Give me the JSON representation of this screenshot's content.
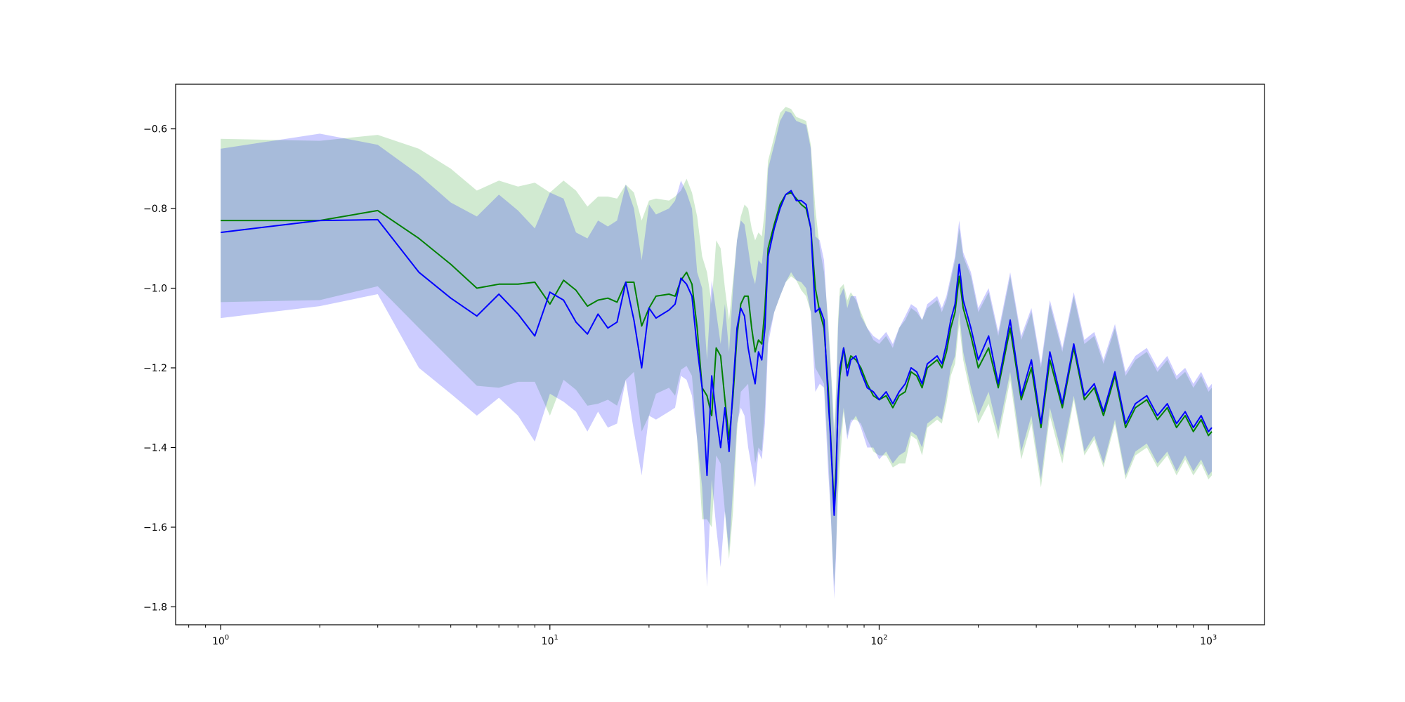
{
  "chart_data": {
    "type": "line",
    "title": "",
    "xlabel": "",
    "ylabel": "",
    "xscale": "log",
    "xlim": [
      0.73,
      1480
    ],
    "ylim": [
      -1.845,
      -0.488
    ],
    "grid": false,
    "legend": "none",
    "xticks": [
      {
        "value": 1,
        "base": "10",
        "exp": "0"
      },
      {
        "value": 10,
        "base": "10",
        "exp": "1"
      },
      {
        "value": 100,
        "base": "10",
        "exp": "2"
      },
      {
        "value": 1000,
        "base": "10",
        "exp": "3"
      }
    ],
    "yticks": [
      {
        "value": -0.6,
        "label": "−0.6"
      },
      {
        "value": -0.8,
        "label": "−0.8"
      },
      {
        "value": -1.0,
        "label": "−1.0"
      },
      {
        "value": -1.2,
        "label": "−1.2"
      },
      {
        "value": -1.4,
        "label": "−1.4"
      },
      {
        "value": -1.6,
        "label": "−1.6"
      },
      {
        "value": -1.8,
        "label": "−1.8"
      }
    ],
    "series": [
      {
        "color": "#008000",
        "band_color": "#2ca02c",
        "band_opacity": 0.22,
        "x": [
          1,
          2,
          3,
          4,
          5,
          6,
          7,
          8,
          9,
          10,
          11,
          12,
          13,
          14,
          15,
          16,
          17,
          18,
          19,
          20,
          21,
          23,
          24,
          25,
          26,
          27,
          28,
          29,
          30,
          31,
          32,
          33,
          34,
          35,
          36,
          37,
          38,
          39,
          40,
          41,
          42,
          43,
          44,
          45,
          46,
          48,
          50,
          52,
          54,
          56,
          58,
          60,
          62,
          64,
          66,
          68,
          70,
          71,
          72,
          73,
          74,
          75,
          76,
          78,
          80,
          82,
          85,
          88,
          92,
          96,
          100,
          105,
          110,
          115,
          120,
          125,
          130,
          135,
          140,
          145,
          150,
          155,
          160,
          165,
          170,
          175,
          180,
          190,
          200,
          215,
          230,
          250,
          270,
          290,
          310,
          330,
          360,
          390,
          420,
          450,
          480,
          520,
          560,
          600,
          650,
          700,
          750,
          800,
          850,
          900,
          950,
          1000,
          1024
        ],
        "mean": [
          -0.83,
          -0.83,
          -0.805,
          -0.875,
          -0.94,
          -1.0,
          -0.99,
          -0.99,
          -0.985,
          -1.04,
          -0.98,
          -1.005,
          -1.045,
          -1.03,
          -1.025,
          -1.035,
          -0.985,
          -0.985,
          -1.095,
          -1.05,
          -1.02,
          -1.015,
          -1.02,
          -0.98,
          -0.96,
          -0.99,
          -1.1,
          -1.25,
          -1.27,
          -1.32,
          -1.15,
          -1.17,
          -1.28,
          -1.38,
          -1.27,
          -1.12,
          -1.04,
          -1.02,
          -1.02,
          -1.1,
          -1.16,
          -1.13,
          -1.14,
          -1.05,
          -0.9,
          -0.84,
          -0.79,
          -0.765,
          -0.76,
          -0.775,
          -0.79,
          -0.8,
          -0.85,
          -1.0,
          -1.06,
          -1.1,
          -1.25,
          -1.35,
          -1.45,
          -1.55,
          -1.45,
          -1.3,
          -1.22,
          -1.15,
          -1.2,
          -1.17,
          -1.18,
          -1.2,
          -1.24,
          -1.27,
          -1.28,
          -1.27,
          -1.3,
          -1.27,
          -1.26,
          -1.21,
          -1.22,
          -1.25,
          -1.2,
          -1.19,
          -1.18,
          -1.2,
          -1.16,
          -1.1,
          -1.06,
          -0.97,
          -1.05,
          -1.12,
          -1.2,
          -1.15,
          -1.25,
          -1.1,
          -1.28,
          -1.2,
          -1.35,
          -1.18,
          -1.3,
          -1.15,
          -1.28,
          -1.25,
          -1.32,
          -1.22,
          -1.35,
          -1.3,
          -1.28,
          -1.33,
          -1.3,
          -1.35,
          -1.32,
          -1.36,
          -1.33,
          -1.37,
          -1.36
        ],
        "upper": [
          -0.625,
          -0.63,
          -0.615,
          -0.65,
          -0.7,
          -0.755,
          -0.73,
          -0.745,
          -0.735,
          -0.76,
          -0.73,
          -0.755,
          -0.795,
          -0.77,
          -0.77,
          -0.775,
          -0.74,
          -0.76,
          -0.83,
          -0.78,
          -0.775,
          -0.78,
          -0.77,
          -0.755,
          -0.725,
          -0.76,
          -0.82,
          -0.92,
          -0.96,
          -1.04,
          -0.88,
          -0.9,
          -1.0,
          -1.08,
          -0.98,
          -0.88,
          -0.82,
          -0.79,
          -0.8,
          -0.85,
          -0.88,
          -0.86,
          -0.87,
          -0.8,
          -0.68,
          -0.62,
          -0.56,
          -0.545,
          -0.55,
          -0.57,
          -0.575,
          -0.58,
          -0.64,
          -0.8,
          -0.9,
          -0.96,
          -1.08,
          -1.17,
          -1.25,
          -1.35,
          -1.25,
          -1.08,
          -1.0,
          -0.99,
          -1.03,
          -1.01,
          -1.03,
          -1.06,
          -1.1,
          -1.13,
          -1.14,
          -1.12,
          -1.15,
          -1.1,
          -1.08,
          -1.05,
          -1.06,
          -1.08,
          -1.05,
          -1.04,
          -1.03,
          -1.06,
          -1.03,
          -0.98,
          -0.93,
          -0.85,
          -0.92,
          -0.97,
          -1.06,
          -1.01,
          -1.12,
          -0.97,
          -1.13,
          -1.06,
          -1.2,
          -1.04,
          -1.16,
          -1.02,
          -1.14,
          -1.12,
          -1.19,
          -1.1,
          -1.22,
          -1.18,
          -1.16,
          -1.21,
          -1.18,
          -1.23,
          -1.21,
          -1.25,
          -1.22,
          -1.26,
          -1.25
        ],
        "lower": [
          -1.035,
          -1.03,
          -0.995,
          -1.1,
          -1.18,
          -1.245,
          -1.25,
          -1.235,
          -1.235,
          -1.32,
          -1.23,
          -1.255,
          -1.295,
          -1.29,
          -1.28,
          -1.295,
          -1.23,
          -1.21,
          -1.36,
          -1.32,
          -1.265,
          -1.25,
          -1.27,
          -1.205,
          -1.195,
          -1.22,
          -1.38,
          -1.58,
          -1.58,
          -1.6,
          -1.42,
          -1.44,
          -1.56,
          -1.68,
          -1.56,
          -1.36,
          -1.26,
          -1.25,
          -1.24,
          -1.35,
          -1.44,
          -1.4,
          -1.41,
          -1.3,
          -1.12,
          -1.06,
          -1.02,
          -0.985,
          -0.97,
          -0.98,
          -1.005,
          -1.02,
          -1.06,
          -1.2,
          -1.22,
          -1.24,
          -1.42,
          -1.53,
          -1.65,
          -1.75,
          -1.65,
          -1.52,
          -1.44,
          -1.31,
          -1.37,
          -1.33,
          -1.33,
          -1.34,
          -1.38,
          -1.41,
          -1.42,
          -1.42,
          -1.45,
          -1.44,
          -1.44,
          -1.37,
          -1.38,
          -1.42,
          -1.35,
          -1.34,
          -1.33,
          -1.34,
          -1.29,
          -1.22,
          -1.19,
          -1.09,
          -1.18,
          -1.27,
          -1.34,
          -1.29,
          -1.38,
          -1.23,
          -1.43,
          -1.34,
          -1.5,
          -1.32,
          -1.44,
          -1.28,
          -1.42,
          -1.38,
          -1.45,
          -1.34,
          -1.48,
          -1.42,
          -1.4,
          -1.45,
          -1.42,
          -1.47,
          -1.43,
          -1.47,
          -1.44,
          -1.48,
          -1.47
        ]
      },
      {
        "color": "#0000ff",
        "band_color": "#0000ff",
        "band_opacity": 0.2,
        "x": [
          1,
          2,
          3,
          4,
          5,
          6,
          7,
          8,
          9,
          10,
          11,
          12,
          13,
          14,
          15,
          16,
          17,
          18,
          19,
          20,
          21,
          23,
          24,
          25,
          26,
          27,
          28,
          29,
          30,
          31,
          32,
          33,
          34,
          35,
          36,
          37,
          38,
          39,
          40,
          41,
          42,
          43,
          44,
          45,
          46,
          48,
          50,
          52,
          54,
          56,
          58,
          60,
          62,
          64,
          66,
          68,
          70,
          71,
          72,
          73,
          74,
          75,
          76,
          78,
          80,
          82,
          85,
          88,
          92,
          96,
          100,
          105,
          110,
          115,
          120,
          125,
          130,
          135,
          140,
          145,
          150,
          155,
          160,
          165,
          170,
          175,
          180,
          190,
          200,
          215,
          230,
          250,
          270,
          290,
          310,
          330,
          360,
          390,
          420,
          450,
          480,
          520,
          560,
          600,
          650,
          700,
          750,
          800,
          850,
          900,
          950,
          1000,
          1024
        ],
        "mean": [
          -0.86,
          -0.83,
          -0.828,
          -0.96,
          -1.025,
          -1.07,
          -1.015,
          -1.065,
          -1.12,
          -1.01,
          -1.03,
          -1.085,
          -1.115,
          -1.065,
          -1.1,
          -1.085,
          -0.985,
          -1.08,
          -1.2,
          -1.05,
          -1.075,
          -1.055,
          -1.04,
          -0.975,
          -0.99,
          -1.02,
          -1.15,
          -1.25,
          -1.47,
          -1.22,
          -1.32,
          -1.4,
          -1.3,
          -1.41,
          -1.25,
          -1.1,
          -1.05,
          -1.07,
          -1.15,
          -1.2,
          -1.24,
          -1.16,
          -1.18,
          -1.1,
          -0.92,
          -0.85,
          -0.8,
          -0.765,
          -0.755,
          -0.78,
          -0.78,
          -0.79,
          -0.85,
          -1.06,
          -1.05,
          -1.08,
          -1.28,
          -1.36,
          -1.46,
          -1.57,
          -1.48,
          -1.28,
          -1.2,
          -1.15,
          -1.22,
          -1.18,
          -1.17,
          -1.21,
          -1.25,
          -1.26,
          -1.28,
          -1.26,
          -1.29,
          -1.26,
          -1.24,
          -1.2,
          -1.21,
          -1.24,
          -1.19,
          -1.18,
          -1.17,
          -1.19,
          -1.14,
          -1.08,
          -1.04,
          -0.94,
          -1.03,
          -1.1,
          -1.18,
          -1.12,
          -1.24,
          -1.08,
          -1.27,
          -1.18,
          -1.34,
          -1.16,
          -1.29,
          -1.14,
          -1.27,
          -1.24,
          -1.31,
          -1.21,
          -1.34,
          -1.29,
          -1.27,
          -1.32,
          -1.29,
          -1.34,
          -1.31,
          -1.35,
          -1.32,
          -1.36,
          -1.35
        ],
        "upper": [
          -0.65,
          -0.612,
          -0.64,
          -0.715,
          -0.785,
          -0.82,
          -0.765,
          -0.805,
          -0.85,
          -0.76,
          -0.775,
          -0.86,
          -0.875,
          -0.83,
          -0.845,
          -0.83,
          -0.74,
          -0.8,
          -0.93,
          -0.79,
          -0.815,
          -0.8,
          -0.78,
          -0.73,
          -0.76,
          -0.8,
          -0.96,
          -1.0,
          -1.18,
          -0.98,
          -1.06,
          -1.14,
          -1.04,
          -1.16,
          -1.0,
          -0.88,
          -0.83,
          -0.84,
          -0.9,
          -0.96,
          -0.99,
          -0.93,
          -0.94,
          -0.86,
          -0.7,
          -0.64,
          -0.58,
          -0.555,
          -0.56,
          -0.58,
          -0.585,
          -0.59,
          -0.65,
          -0.87,
          -0.88,
          -0.93,
          -1.1,
          -1.18,
          -1.27,
          -1.38,
          -1.29,
          -1.1,
          -1.02,
          -1.0,
          -1.05,
          -1.02,
          -1.02,
          -1.07,
          -1.1,
          -1.12,
          -1.13,
          -1.11,
          -1.14,
          -1.1,
          -1.07,
          -1.04,
          -1.05,
          -1.08,
          -1.04,
          -1.03,
          -1.02,
          -1.05,
          -1.02,
          -0.97,
          -0.92,
          -0.83,
          -0.91,
          -0.96,
          -1.05,
          -1.0,
          -1.11,
          -0.96,
          -1.12,
          -1.05,
          -1.19,
          -1.03,
          -1.15,
          -1.01,
          -1.13,
          -1.11,
          -1.18,
          -1.09,
          -1.21,
          -1.17,
          -1.15,
          -1.2,
          -1.17,
          -1.22,
          -1.2,
          -1.24,
          -1.21,
          -1.25,
          -1.24
        ],
        "lower": [
          -1.075,
          -1.045,
          -1.015,
          -1.2,
          -1.265,
          -1.32,
          -1.275,
          -1.32,
          -1.385,
          -1.265,
          -1.285,
          -1.31,
          -1.36,
          -1.31,
          -1.35,
          -1.34,
          -1.23,
          -1.36,
          -1.47,
          -1.32,
          -1.33,
          -1.31,
          -1.3,
          -1.22,
          -1.23,
          -1.27,
          -1.38,
          -1.5,
          -1.75,
          -1.48,
          -1.6,
          -1.7,
          -1.56,
          -1.66,
          -1.5,
          -1.34,
          -1.3,
          -1.32,
          -1.4,
          -1.45,
          -1.5,
          -1.41,
          -1.43,
          -1.34,
          -1.14,
          -1.06,
          -1.02,
          -0.985,
          -0.96,
          -0.98,
          -0.985,
          -1.0,
          -1.06,
          -1.26,
          -1.24,
          -1.25,
          -1.46,
          -1.54,
          -1.65,
          -1.78,
          -1.67,
          -1.46,
          -1.38,
          -1.3,
          -1.38,
          -1.34,
          -1.32,
          -1.35,
          -1.4,
          -1.4,
          -1.43,
          -1.41,
          -1.44,
          -1.42,
          -1.41,
          -1.36,
          -1.37,
          -1.4,
          -1.34,
          -1.33,
          -1.32,
          -1.33,
          -1.27,
          -1.2,
          -1.17,
          -1.06,
          -1.16,
          -1.25,
          -1.32,
          -1.26,
          -1.36,
          -1.21,
          -1.41,
          -1.32,
          -1.48,
          -1.3,
          -1.42,
          -1.27,
          -1.41,
          -1.37,
          -1.44,
          -1.33,
          -1.47,
          -1.41,
          -1.39,
          -1.44,
          -1.41,
          -1.46,
          -1.42,
          -1.46,
          -1.43,
          -1.47,
          -1.46
        ]
      }
    ]
  }
}
